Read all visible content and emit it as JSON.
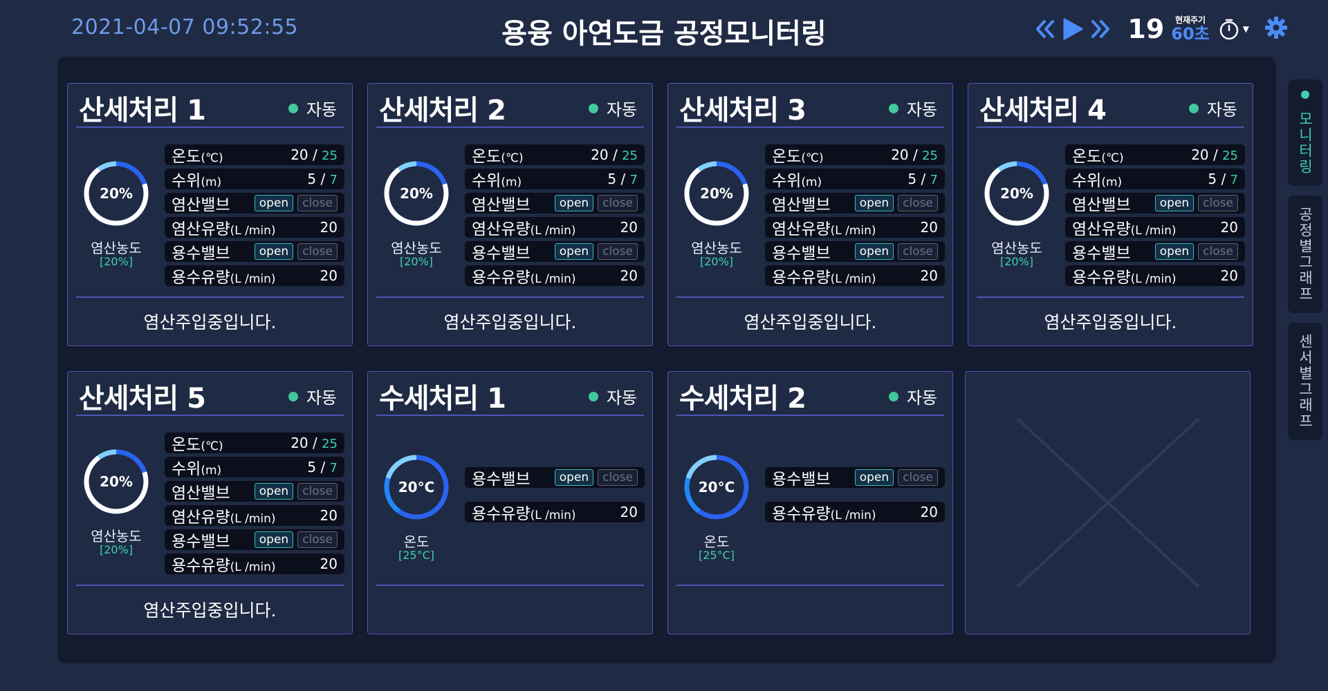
{
  "header": {
    "datetime": "2021-04-07 09:52:55",
    "title": "용융 아연도금 공정모니터링",
    "cycle_count": "19",
    "cycle_label": "현재주기",
    "cycle_value": "60초",
    "icons": [
      "double-chevron-left-icon",
      "play-icon",
      "double-chevron-right-icon",
      "timer-icon",
      "gear-icon"
    ]
  },
  "colors": {
    "background": "#1f2a44",
    "panel": "#141b2e",
    "card_border": "#4b57b5",
    "accent_blue": "#4a8cf7",
    "accent_teal": "#3fd0b0",
    "status_green": "#43c89c"
  },
  "acid_cards": [
    {
      "title": "산세처리 1",
      "mode": "자동",
      "gauge_value": "20%",
      "gauge_fraction": 0.2,
      "gauge_label": "염산농도",
      "gauge_sub": "[20%]",
      "temp_label": "온도",
      "temp_unit": "(℃)",
      "temp_value": "20 / ",
      "temp_max": "25",
      "level_label": "수위",
      "level_unit": "(m)",
      "level_value": "5 / ",
      "level_max": "7",
      "acid_valve_label": "염산밸브",
      "acid_flow_label": "염산유량",
      "acid_flow_unit": "(L /min)",
      "acid_flow_value": "20",
      "water_valve_label": "용수밸브",
      "water_flow_label": "용수유량",
      "water_flow_unit": "(L /min)",
      "water_flow_value": "20",
      "open_label": "open",
      "close_label": "close",
      "status_message": "염산주입중입니다."
    },
    {
      "title": "산세처리 2",
      "mode": "자동",
      "gauge_value": "20%",
      "gauge_fraction": 0.2,
      "gauge_label": "염산농도",
      "gauge_sub": "[20%]",
      "temp_label": "온도",
      "temp_unit": "(℃)",
      "temp_value": "20 / ",
      "temp_max": "25",
      "level_label": "수위",
      "level_unit": "(m)",
      "level_value": "5 / ",
      "level_max": "7",
      "acid_valve_label": "염산밸브",
      "acid_flow_label": "염산유량",
      "acid_flow_unit": "(L /min)",
      "acid_flow_value": "20",
      "water_valve_label": "용수밸브",
      "water_flow_label": "용수유량",
      "water_flow_unit": "(L /min)",
      "water_flow_value": "20",
      "open_label": "open",
      "close_label": "close",
      "status_message": "염산주입중입니다."
    },
    {
      "title": "산세처리 3",
      "mode": "자동",
      "gauge_value": "20%",
      "gauge_fraction": 0.2,
      "gauge_label": "염산농도",
      "gauge_sub": "[20%]",
      "temp_label": "온도",
      "temp_unit": "(℃)",
      "temp_value": "20 / ",
      "temp_max": "25",
      "level_label": "수위",
      "level_unit": "(m)",
      "level_value": "5 / ",
      "level_max": "7",
      "acid_valve_label": "염산밸브",
      "acid_flow_label": "염산유량",
      "acid_flow_unit": "(L /min)",
      "acid_flow_value": "20",
      "water_valve_label": "용수밸브",
      "water_flow_label": "용수유량",
      "water_flow_unit": "(L /min)",
      "water_flow_value": "20",
      "open_label": "open",
      "close_label": "close",
      "status_message": "염산주입중입니다."
    },
    {
      "title": "산세처리 4",
      "mode": "자동",
      "gauge_value": "20%",
      "gauge_fraction": 0.2,
      "gauge_label": "염산농도",
      "gauge_sub": "[20%]",
      "temp_label": "온도",
      "temp_unit": "(℃)",
      "temp_value": "20 / ",
      "temp_max": "25",
      "level_label": "수위",
      "level_unit": "(m)",
      "level_value": "5 / ",
      "level_max": "7",
      "acid_valve_label": "염산밸브",
      "acid_flow_label": "염산유량",
      "acid_flow_unit": "(L /min)",
      "acid_flow_value": "20",
      "water_valve_label": "용수밸브",
      "water_flow_label": "용수유량",
      "water_flow_unit": "(L /min)",
      "water_flow_value": "20",
      "open_label": "open",
      "close_label": "close",
      "status_message": "염산주입중입니다."
    },
    {
      "title": "산세처리 5",
      "mode": "자동",
      "gauge_value": "20%",
      "gauge_fraction": 0.2,
      "gauge_label": "염산농도",
      "gauge_sub": "[20%]",
      "temp_label": "온도",
      "temp_unit": "(℃)",
      "temp_value": "20 / ",
      "temp_max": "25",
      "level_label": "수위",
      "level_unit": "(m)",
      "level_value": "5 / ",
      "level_max": "7",
      "acid_valve_label": "염산밸브",
      "acid_flow_label": "염산유량",
      "acid_flow_unit": "(L /min)",
      "acid_flow_value": "20",
      "water_valve_label": "용수밸브",
      "water_flow_label": "용수유량",
      "water_flow_unit": "(L /min)",
      "water_flow_value": "20",
      "open_label": "open",
      "close_label": "close",
      "status_message": "염산주입중입니다."
    }
  ],
  "water_cards": [
    {
      "title": "수세처리 1",
      "mode": "자동",
      "gauge_value": "20°C",
      "gauge_fraction": 0.8,
      "gauge_label": "온도",
      "gauge_sub": "[25°C]",
      "water_valve_label": "용수밸브",
      "water_flow_label": "용수유량",
      "water_flow_unit": "(L /min)",
      "water_flow_value": "20",
      "open_label": "open",
      "close_label": "close"
    },
    {
      "title": "수세처리 2",
      "mode": "자동",
      "gauge_value": "20°C",
      "gauge_fraction": 0.8,
      "gauge_label": "온도",
      "gauge_sub": "[25°C]",
      "water_valve_label": "용수밸브",
      "water_flow_label": "용수유량",
      "water_flow_unit": "(L /min)",
      "water_flow_value": "20",
      "open_label": "open",
      "close_label": "close"
    }
  ],
  "side_tabs": [
    {
      "label": "모니터링",
      "active": true
    },
    {
      "label": "공정별그래프",
      "active": false
    },
    {
      "label": "센서별그래프",
      "active": false
    }
  ]
}
